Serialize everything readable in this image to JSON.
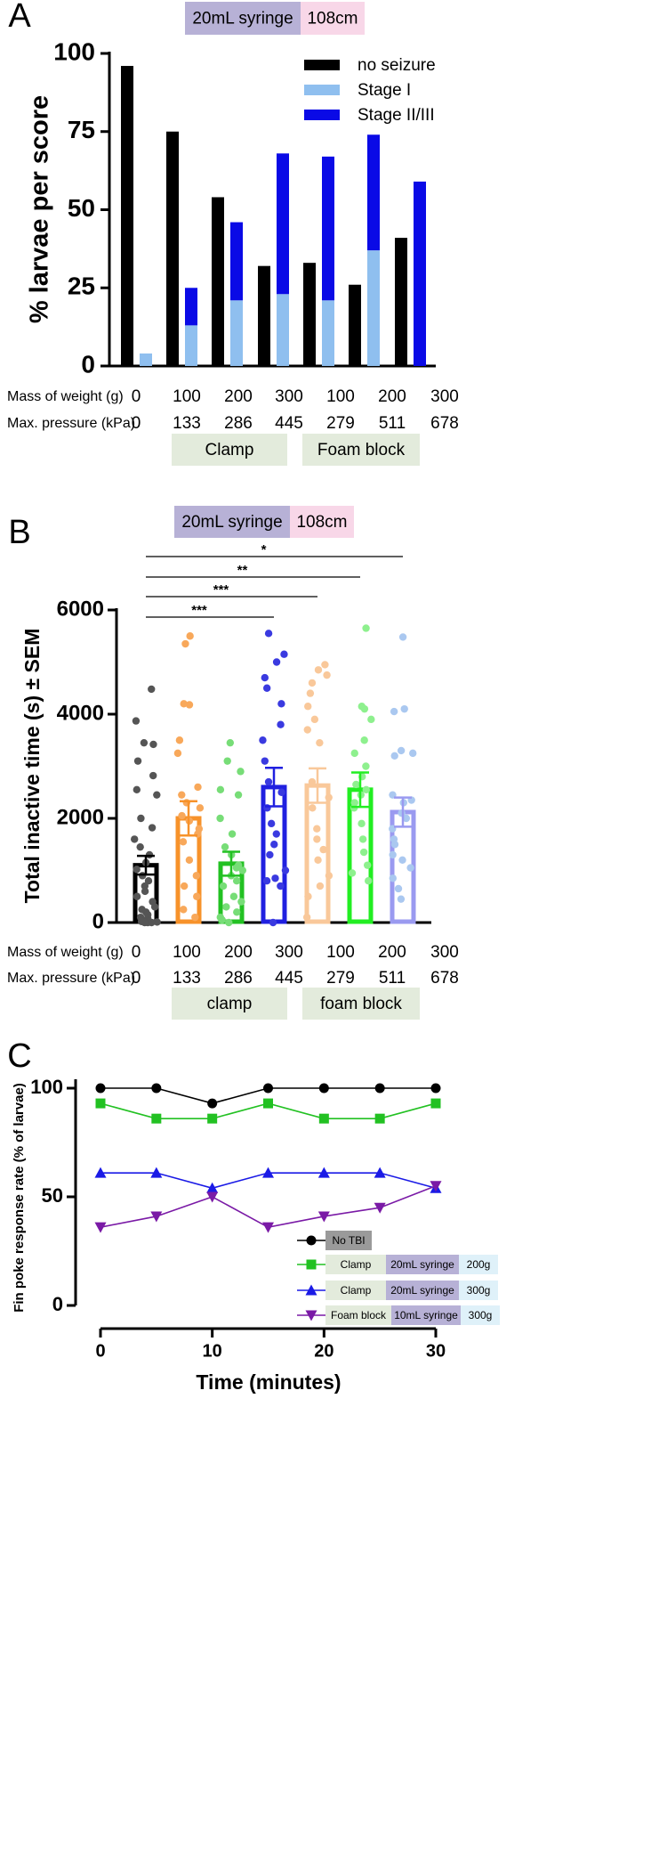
{
  "chart_data": [
    {
      "panel": "A",
      "type": "bar",
      "header": {
        "syringe": "20mL syringe",
        "height": "108cm",
        "syringe_color": "#b7b1d6",
        "height_color": "#f8d7e8"
      },
      "ylabel": "% larvae per score",
      "ylim": [
        0,
        100
      ],
      "yticks": [
        "0",
        "25",
        "50",
        "75",
        "100"
      ],
      "legend": [
        {
          "label": "no seizure",
          "color": "#000000"
        },
        {
          "label": "Stage I",
          "color": "#8fbfef"
        },
        {
          "label": "Stage II/III",
          "color": "#0a0ae6"
        }
      ],
      "legend_position": "top-right",
      "row_labels": [
        "Mass of weight (g)",
        "Max. pressure (kPa)"
      ],
      "mass": [
        "0",
        "100",
        "200",
        "300",
        "100",
        "200",
        "300"
      ],
      "pressure": [
        "0",
        "133",
        "286",
        "445",
        "279",
        "511",
        "678"
      ],
      "groups": [
        {
          "label": "Clamp",
          "color": "#e3ebdc"
        },
        {
          "label": "Foam block",
          "color": "#e3ebdc"
        }
      ],
      "no_seizure": [
        96,
        75,
        54,
        32,
        33,
        26,
        41
      ],
      "stage_I": [
        4,
        13,
        21,
        23,
        21,
        37,
        0
      ],
      "stage_II_III": [
        0,
        12,
        25,
        45,
        46,
        37,
        59
      ]
    },
    {
      "panel": "B",
      "type": "bar",
      "header": {
        "syringe": "20mL syringe",
        "height": "108cm",
        "syringe_color": "#b7b1d6",
        "height_color": "#f8d7e8"
      },
      "ylabel": "Total inactive time (s) ± SEM",
      "ylim": [
        0,
        6000
      ],
      "yticks": [
        "0",
        "2000",
        "4000",
        "6000"
      ],
      "row_labels": [
        "Mass of weight (g)",
        "Max. pressure (kPa)"
      ],
      "mass": [
        "0",
        "100",
        "200",
        "300",
        "100",
        "200",
        "300"
      ],
      "pressure": [
        "0",
        "133",
        "286",
        "445",
        "279",
        "511",
        "678"
      ],
      "groups": [
        {
          "label": "clamp",
          "color": "#e3ebdc"
        },
        {
          "label": "foam block",
          "color": "#e3ebdc"
        }
      ],
      "means": [
        1100,
        2000,
        1130,
        2600,
        2630,
        2550,
        2120
      ],
      "sem": [
        180,
        330,
        230,
        370,
        330,
        330,
        280
      ],
      "colors": [
        "#000000",
        "#f7922a",
        "#22c122",
        "#2020e0",
        "#f9c89a",
        "#22ee22",
        "#9a9af0"
      ],
      "dot_colors": [
        "#555555",
        "#f8a85a",
        "#77dd77",
        "#3a3ae0",
        "#f9c89a",
        "#8ef08e",
        "#aac8f0"
      ],
      "points": [
        [
          4480,
          3870,
          3450,
          3420,
          3100,
          2820,
          2550,
          2450,
          2000,
          1820,
          1600,
          1450,
          1300,
          1150,
          1020,
          900,
          800,
          700,
          600,
          500,
          400,
          300,
          250,
          200,
          150,
          100,
          80,
          50,
          30,
          20,
          10,
          0,
          0,
          0,
          5
        ],
        [
          5500,
          5350,
          4200,
          4180,
          3500,
          3250,
          2600,
          2450,
          2300,
          2200,
          2050,
          1950,
          1800,
          1700,
          1550,
          1200,
          900,
          700,
          500,
          250,
          100
        ],
        [
          3450,
          3100,
          2900,
          2550,
          2450,
          2000,
          1700,
          1450,
          1300,
          1100,
          1050,
          1000,
          900,
          800,
          700,
          500,
          400,
          300,
          200,
          100,
          50,
          0
        ],
        [
          5550,
          5150,
          5000,
          4700,
          4500,
          4200,
          3800,
          3500,
          3100,
          2700,
          2500,
          2200,
          1900,
          1700,
          1500,
          1300,
          1000,
          850,
          800,
          700,
          0
        ],
        [
          4950,
          4850,
          4750,
          4600,
          4400,
          4150,
          3900,
          3700,
          3450,
          2700,
          2400,
          2200,
          1800,
          1600,
          1400,
          1200,
          900,
          700,
          500,
          100
        ],
        [
          5650,
          4150,
          4100,
          3900,
          3500,
          3250,
          3000,
          2800,
          2650,
          2550,
          2450,
          2300,
          2200,
          1900,
          1600,
          1350,
          1100,
          950,
          800
        ],
        [
          5480,
          4100,
          4050,
          3300,
          3250,
          3200,
          2450,
          2350,
          2300,
          2100,
          2000,
          1800,
          1600,
          1500,
          1300,
          1200,
          1050,
          850,
          650,
          450
        ]
      ],
      "significance": [
        {
          "label": "*",
          "from": 0,
          "to": 6
        },
        {
          "label": "**",
          "from": 0,
          "to": 5
        },
        {
          "label": "***",
          "from": 0,
          "to": 4
        },
        {
          "label": "***",
          "from": 0,
          "to": 3
        }
      ]
    },
    {
      "panel": "C",
      "type": "line",
      "xlabel": "Time (minutes)",
      "ylabel": "Fin poke response rate (% of larvae)",
      "xlim": [
        0,
        30
      ],
      "ylim": [
        0,
        100
      ],
      "xticks": [
        "0",
        "10",
        "20",
        "30"
      ],
      "yticks": [
        "0",
        "50",
        "100"
      ],
      "x": [
        0,
        5,
        10,
        15,
        20,
        25,
        30
      ],
      "series": [
        {
          "color": "#000000",
          "marker": "circle",
          "values": [
            100,
            100,
            93,
            100,
            100,
            100,
            100
          ],
          "legend": [
            {
              "text": "No TBI",
              "bg": "#9a9a9a"
            }
          ]
        },
        {
          "color": "#22c122",
          "marker": "square",
          "values": [
            93,
            86,
            86,
            93,
            86,
            86,
            93
          ],
          "legend": [
            {
              "text": "Clamp",
              "bg": "#e3ebdc"
            },
            {
              "text": "20mL syringe",
              "bg": "#b7b1d6"
            },
            {
              "text": "200g",
              "bg": "#dff1f9"
            }
          ]
        },
        {
          "color": "#1a1ae6",
          "marker": "triangle-up",
          "values": [
            61,
            61,
            54,
            61,
            61,
            61,
            54
          ],
          "legend": [
            {
              "text": "Clamp",
              "bg": "#e3ebdc"
            },
            {
              "text": "20mL syringe",
              "bg": "#b7b1d6"
            },
            {
              "text": "300g",
              "bg": "#dff1f9"
            }
          ]
        },
        {
          "color": "#7a1aa6",
          "marker": "triangle-down",
          "values": [
            36,
            41,
            50,
            36,
            41,
            45,
            55
          ],
          "legend": [
            {
              "text": "Foam block",
              "bg": "#e3ebdc"
            },
            {
              "text": "10mL syringe",
              "bg": "#b7b1d6"
            },
            {
              "text": "300g",
              "bg": "#dff1f9"
            }
          ]
        }
      ]
    }
  ]
}
